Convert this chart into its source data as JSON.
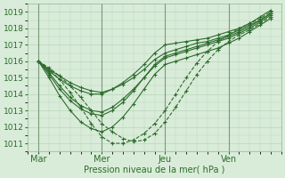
{
  "title": "",
  "xlabel": "Pression niveau de la mer( hPa )",
  "ylabel": "",
  "ylim": [
    1010.5,
    1019.5
  ],
  "xlim": [
    0,
    96
  ],
  "yticks": [
    1011,
    1012,
    1013,
    1014,
    1015,
    1016,
    1017,
    1018,
    1019
  ],
  "xtick_labels": [
    "Mar",
    "Mer",
    "Jeu",
    "Ven"
  ],
  "xtick_positions": [
    4,
    28,
    52,
    76
  ],
  "vline_positions": [
    4,
    28,
    52,
    76
  ],
  "background_color": "#d9ecd9",
  "grid_color": "#b8d4b8",
  "line_color": "#2d6b2d",
  "lines": [
    {
      "x": [
        4,
        8,
        12,
        16,
        20,
        24,
        28,
        32,
        36,
        40,
        44,
        48,
        52,
        56,
        60,
        64,
        68,
        72,
        76,
        80,
        84,
        88,
        92
      ],
      "y": [
        1016.0,
        1015.4,
        1014.9,
        1014.5,
        1014.2,
        1014.0,
        1014.0,
        1014.3,
        1014.7,
        1015.2,
        1015.8,
        1016.5,
        1017.0,
        1017.1,
        1017.2,
        1017.3,
        1017.4,
        1017.6,
        1017.8,
        1018.0,
        1018.3,
        1018.7,
        1019.1
      ],
      "dashed": false
    },
    {
      "x": [
        4,
        8,
        12,
        16,
        20,
        24,
        28,
        32,
        36,
        40,
        44,
        48,
        52,
        56,
        60,
        64,
        68,
        72,
        76,
        80,
        84,
        88,
        92
      ],
      "y": [
        1016.0,
        1015.2,
        1014.3,
        1013.6,
        1013.1,
        1012.8,
        1012.7,
        1013.0,
        1013.5,
        1014.2,
        1015.0,
        1015.8,
        1016.3,
        1016.5,
        1016.7,
        1016.9,
        1017.1,
        1017.3,
        1017.5,
        1017.8,
        1018.1,
        1018.5,
        1018.9
      ],
      "dashed": false
    },
    {
      "x": [
        4,
        8,
        12,
        16,
        20,
        24,
        28,
        32,
        36,
        40,
        44,
        48,
        52,
        56,
        60,
        64,
        68,
        72,
        76,
        80,
        84,
        88,
        92
      ],
      "y": [
        1016.0,
        1015.0,
        1013.9,
        1013.0,
        1012.3,
        1011.9,
        1011.7,
        1012.0,
        1012.6,
        1013.4,
        1014.3,
        1015.2,
        1015.8,
        1016.0,
        1016.2,
        1016.4,
        1016.6,
        1016.8,
        1017.1,
        1017.4,
        1017.8,
        1018.2,
        1018.6
      ],
      "dashed": false
    },
    {
      "x": [
        4,
        8,
        12,
        16,
        20,
        24,
        28,
        32,
        36,
        40,
        44,
        48,
        52,
        56,
        60,
        64,
        68,
        72,
        76,
        80,
        84,
        88,
        92
      ],
      "y": [
        1016.0,
        1015.3,
        1014.5,
        1013.8,
        1013.3,
        1013.0,
        1012.9,
        1013.2,
        1013.7,
        1014.3,
        1015.0,
        1015.7,
        1016.2,
        1016.4,
        1016.6,
        1016.8,
        1017.0,
        1017.2,
        1017.4,
        1017.7,
        1018.0,
        1018.4,
        1018.8
      ],
      "dashed": false
    },
    {
      "x": [
        4,
        8,
        12,
        16,
        20,
        24,
        28,
        32,
        36,
        40,
        44,
        48,
        52,
        56,
        60,
        64,
        68,
        72,
        76,
        80,
        84,
        88,
        92
      ],
      "y": [
        1016.0,
        1015.5,
        1015.1,
        1014.7,
        1014.4,
        1014.2,
        1014.1,
        1014.3,
        1014.6,
        1015.0,
        1015.5,
        1016.1,
        1016.5,
        1016.7,
        1016.9,
        1017.1,
        1017.2,
        1017.4,
        1017.6,
        1017.9,
        1018.2,
        1018.5,
        1018.9
      ],
      "dashed": false
    },
    {
      "x": [
        4,
        8,
        12,
        16,
        20,
        24,
        28,
        32,
        36,
        40,
        44,
        48,
        52,
        56,
        60,
        64,
        68,
        72,
        76,
        80,
        84,
        88,
        92
      ],
      "y": [
        1016.0,
        1015.6,
        1015.1,
        1014.5,
        1013.8,
        1013.0,
        1012.2,
        1011.7,
        1011.3,
        1011.1,
        1011.2,
        1011.6,
        1012.3,
        1013.2,
        1014.2,
        1015.2,
        1016.0,
        1016.7,
        1017.2,
        1017.6,
        1017.9,
        1018.3,
        1018.7
      ],
      "dashed": true
    },
    {
      "x": [
        4,
        8,
        12,
        16,
        20,
        24,
        28,
        32,
        36,
        40,
        44,
        48,
        52,
        56,
        60,
        64,
        68,
        72,
        76,
        80,
        84,
        88,
        92
      ],
      "y": [
        1016.0,
        1015.5,
        1014.9,
        1014.1,
        1013.2,
        1012.2,
        1011.4,
        1011.0,
        1011.0,
        1011.2,
        1011.6,
        1012.2,
        1013.0,
        1014.0,
        1015.0,
        1015.9,
        1016.6,
        1017.2,
        1017.6,
        1018.0,
        1018.3,
        1018.6,
        1019.0
      ],
      "dashed": true
    }
  ]
}
